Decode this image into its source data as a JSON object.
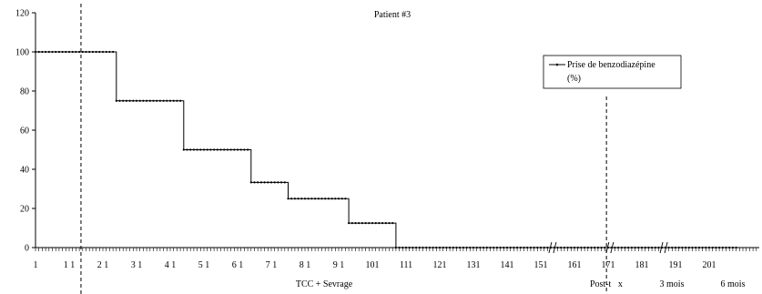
{
  "chart_data": {
    "type": "line",
    "title": "Patient #3",
    "ylim": [
      0,
      120
    ],
    "y_ticks": [
      0,
      20,
      40,
      60,
      80,
      100,
      120
    ],
    "x_tick_labels": [
      "1",
      "1 1",
      "2 1",
      "3 1",
      "4 1",
      "5 1",
      "6 1",
      "7 1",
      "8 1",
      "9 1",
      "101",
      "111",
      "121",
      "131",
      "141",
      "151",
      "161",
      "171",
      "181",
      "191",
      "201"
    ],
    "series": [
      {
        "name": "Prise de benzodiazépine (%)",
        "steps": [
          {
            "x_start": 1,
            "x_end": 24,
            "y": 100
          },
          {
            "x_start": 25,
            "x_end": 44,
            "y": 75
          },
          {
            "x_start": 45,
            "x_end": 64,
            "y": 50
          },
          {
            "x_start": 65,
            "x_end": 75,
            "y": 33.3
          },
          {
            "x_start": 76,
            "x_end": 93,
            "y": 25
          },
          {
            "x_start": 94,
            "x_end": 107,
            "y": 12.5
          },
          {
            "x_start": 108,
            "x_end": 209,
            "y": 0
          }
        ]
      }
    ],
    "phase_labels": [
      "TCC + Sevrage",
      "Post-t   x",
      "3 mois",
      "6 mois"
    ],
    "axis_breaks_after_x": [
      154,
      171,
      187
    ],
    "vertical_markers_x": [
      14.5,
      170.5
    ],
    "legend": {
      "position": "top-right",
      "label_line1": "Prise de benzodiazépine",
      "label_line2": "(%)"
    }
  },
  "colors": {
    "line": "#000000",
    "axis": "#000000"
  }
}
